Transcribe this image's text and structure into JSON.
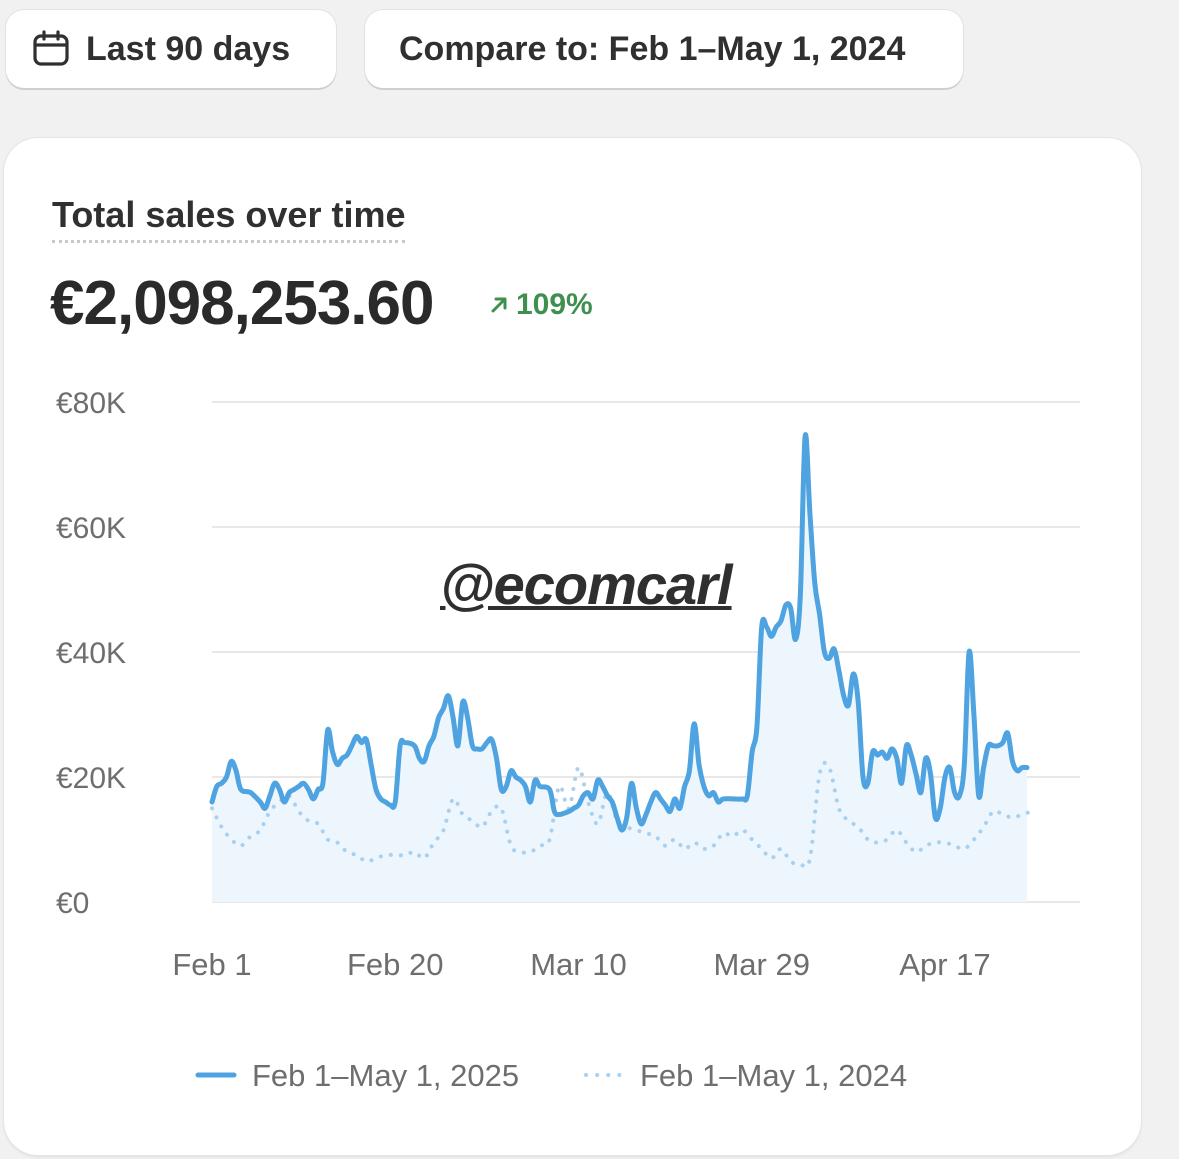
{
  "toolbar": {
    "date_range_label": "Last 90 days",
    "compare_label": "Compare to: Feb 1–May 1, 2024",
    "date_icon": "calendar-icon"
  },
  "card": {
    "title": "Total sales over time",
    "total": "€2,098,253.60",
    "change": "109%",
    "change_direction": "up",
    "change_color": "#3f8f4e"
  },
  "watermark": "@ecomcarl",
  "chart_data": {
    "type": "line",
    "title": "Total sales over time",
    "xlabel": "",
    "ylabel": "",
    "ylim": [
      0,
      80000
    ],
    "y_ticks": [
      0,
      20000,
      40000,
      60000,
      80000
    ],
    "y_tick_labels": [
      "€0",
      "€20K",
      "€40K",
      "€60K",
      "€80K"
    ],
    "x_tick_days": [
      0,
      19,
      38,
      57,
      76
    ],
    "x_tick_labels": [
      "Feb 1",
      "Feb 20",
      "Mar 10",
      "Mar 29",
      "Apr 17"
    ],
    "x_range_days": [
      0,
      90
    ],
    "grid": true,
    "legend_position": "bottom",
    "series": [
      {
        "name": "Feb 1–May 1, 2025",
        "style": "solid",
        "color": "#4ea3e0",
        "points": [
          [
            0,
            16000
          ],
          [
            0.5,
            18500
          ],
          [
            1,
            19000
          ],
          [
            1.5,
            20000
          ],
          [
            2,
            22500
          ],
          [
            2.5,
            21000
          ],
          [
            3,
            18000
          ],
          [
            4,
            17500
          ],
          [
            5,
            16000
          ],
          [
            5.5,
            15000
          ],
          [
            6,
            17000
          ],
          [
            6.5,
            19000
          ],
          [
            7,
            18000
          ],
          [
            7.5,
            16000
          ],
          [
            8,
            17500
          ],
          [
            8.5,
            18000
          ],
          [
            9,
            18500
          ],
          [
            9.5,
            19000
          ],
          [
            10,
            18000
          ],
          [
            10.5,
            16500
          ],
          [
            11,
            18000
          ],
          [
            11.5,
            19000
          ],
          [
            12,
            27500
          ],
          [
            12.5,
            24000
          ],
          [
            13,
            22000
          ],
          [
            13.5,
            23000
          ],
          [
            14,
            23500
          ],
          [
            14.5,
            25000
          ],
          [
            15,
            26500
          ],
          [
            15.5,
            25500
          ],
          [
            16,
            26000
          ],
          [
            16.5,
            22000
          ],
          [
            17,
            18000
          ],
          [
            17.5,
            16500
          ],
          [
            18,
            16000
          ],
          [
            18.5,
            15500
          ],
          [
            19,
            16000
          ],
          [
            19.5,
            25000
          ],
          [
            20,
            25500
          ],
          [
            21,
            25000
          ],
          [
            21.5,
            23000
          ],
          [
            22,
            22500
          ],
          [
            22.5,
            25000
          ],
          [
            23,
            26500
          ],
          [
            23.5,
            29500
          ],
          [
            24,
            31000
          ],
          [
            24.5,
            33000
          ],
          [
            25,
            29500
          ],
          [
            25.5,
            25000
          ],
          [
            26,
            32000
          ],
          [
            26.5,
            29500
          ],
          [
            27,
            25000
          ],
          [
            27.5,
            24500
          ],
          [
            28,
            24500
          ],
          [
            28.5,
            25500
          ],
          [
            29,
            26000
          ],
          [
            29.5,
            23000
          ],
          [
            30,
            18000
          ],
          [
            30.5,
            18500
          ],
          [
            31,
            21000
          ],
          [
            31.5,
            20000
          ],
          [
            32,
            19500
          ],
          [
            32.5,
            18500
          ],
          [
            33,
            16000
          ],
          [
            33.5,
            19500
          ],
          [
            34,
            18500
          ],
          [
            35,
            18000
          ],
          [
            35.5,
            14500
          ],
          [
            36,
            14000
          ],
          [
            37,
            14500
          ],
          [
            37.5,
            15000
          ],
          [
            38,
            15500
          ],
          [
            38.5,
            17000
          ],
          [
            39,
            17500
          ],
          [
            39.5,
            16500
          ],
          [
            40,
            19500
          ],
          [
            40.5,
            18500
          ],
          [
            41,
            17000
          ],
          [
            41.5,
            16000
          ],
          [
            42,
            13500
          ],
          [
            42.5,
            11500
          ],
          [
            43,
            13500
          ],
          [
            43.5,
            19000
          ],
          [
            44,
            15000
          ],
          [
            44.5,
            12500
          ],
          [
            45,
            14000
          ],
          [
            45.5,
            16000
          ],
          [
            46,
            17500
          ],
          [
            46.5,
            16500
          ],
          [
            47,
            15500
          ],
          [
            47.5,
            14500
          ],
          [
            48,
            16500
          ],
          [
            48.5,
            15000
          ],
          [
            49,
            18500
          ],
          [
            49.5,
            21000
          ],
          [
            50,
            28500
          ],
          [
            50.5,
            22000
          ],
          [
            51,
            18500
          ],
          [
            51.5,
            17000
          ],
          [
            52,
            17500
          ],
          [
            52.5,
            16000
          ],
          [
            53,
            16500
          ],
          [
            54,
            16500
          ],
          [
            55,
            16500
          ],
          [
            55.5,
            17000
          ],
          [
            56,
            24000
          ],
          [
            56.5,
            28000
          ],
          [
            57,
            44000
          ],
          [
            57.5,
            44000
          ],
          [
            58,
            42500
          ],
          [
            58.5,
            44000
          ],
          [
            59,
            45000
          ],
          [
            59.5,
            47500
          ],
          [
            60,
            47000
          ],
          [
            60.5,
            42000
          ],
          [
            61,
            49000
          ],
          [
            61.5,
            74500
          ],
          [
            62,
            62000
          ],
          [
            62.5,
            51000
          ],
          [
            63,
            46000
          ],
          [
            63.5,
            40000
          ],
          [
            64,
            39000
          ],
          [
            64.5,
            40500
          ],
          [
            65,
            37000
          ],
          [
            65.5,
            33000
          ],
          [
            66,
            31500
          ],
          [
            66.5,
            36500
          ],
          [
            67,
            32000
          ],
          [
            67.5,
            20000
          ],
          [
            68,
            19000
          ],
          [
            68.5,
            24000
          ],
          [
            69,
            23500
          ],
          [
            69.5,
            24000
          ],
          [
            70,
            23000
          ],
          [
            70.5,
            24500
          ],
          [
            71,
            23000
          ],
          [
            71.5,
            19000
          ],
          [
            72,
            25000
          ],
          [
            72.5,
            23500
          ],
          [
            73,
            20500
          ],
          [
            73.5,
            17500
          ],
          [
            74,
            23000
          ],
          [
            74.5,
            20500
          ],
          [
            75,
            13500
          ],
          [
            75.5,
            15000
          ],
          [
            76,
            20000
          ],
          [
            76.5,
            21500
          ],
          [
            77,
            17500
          ],
          [
            77.5,
            17000
          ],
          [
            78,
            22000
          ],
          [
            78.5,
            40000
          ],
          [
            79,
            30000
          ],
          [
            79.5,
            17000
          ],
          [
            80,
            21500
          ],
          [
            80.5,
            25000
          ],
          [
            81,
            25000
          ],
          [
            81.5,
            25000
          ],
          [
            82,
            25500
          ],
          [
            82.5,
            27000
          ],
          [
            83,
            22500
          ],
          [
            83.5,
            21000
          ],
          [
            84,
            21500
          ],
          [
            84.5,
            21500
          ]
        ]
      },
      {
        "name": "Feb 1–May 1, 2024",
        "style": "dotted",
        "color": "#a9d1ef",
        "points": [
          [
            0,
            15000
          ],
          [
            1,
            12000
          ],
          [
            2,
            10000
          ],
          [
            3,
            9000
          ],
          [
            4,
            10500
          ],
          [
            5,
            11500
          ],
          [
            6,
            14500
          ],
          [
            7,
            16000
          ],
          [
            8,
            17000
          ],
          [
            9,
            14500
          ],
          [
            10,
            13000
          ],
          [
            11,
            12500
          ],
          [
            12,
            10000
          ],
          [
            13,
            9500
          ],
          [
            14,
            8000
          ],
          [
            15,
            7500
          ],
          [
            16,
            6500
          ],
          [
            17,
            7000
          ],
          [
            18,
            7500
          ],
          [
            19,
            7500
          ],
          [
            20,
            7500
          ],
          [
            21,
            8000
          ],
          [
            22,
            7000
          ],
          [
            23,
            9500
          ],
          [
            24,
            11500
          ],
          [
            25,
            16500
          ],
          [
            26,
            14000
          ],
          [
            27,
            13000
          ],
          [
            28,
            12000
          ],
          [
            29,
            14500
          ],
          [
            30,
            15000
          ],
          [
            31,
            9000
          ],
          [
            32,
            8000
          ],
          [
            33,
            8000
          ],
          [
            34,
            9000
          ],
          [
            35,
            10000
          ],
          [
            36,
            18500
          ],
          [
            37,
            15000
          ],
          [
            38,
            21500
          ],
          [
            39,
            16000
          ],
          [
            40,
            12500
          ],
          [
            41,
            17500
          ],
          [
            42,
            13000
          ],
          [
            43,
            12000
          ],
          [
            44,
            11500
          ],
          [
            45,
            11000
          ],
          [
            46,
            10500
          ],
          [
            47,
            9000
          ],
          [
            48,
            10000
          ],
          [
            49,
            8500
          ],
          [
            50,
            9500
          ],
          [
            51,
            8500
          ],
          [
            52,
            9000
          ],
          [
            53,
            11000
          ],
          [
            54,
            10500
          ],
          [
            55,
            11500
          ],
          [
            56,
            10000
          ],
          [
            57,
            8500
          ],
          [
            58,
            7000
          ],
          [
            59,
            8500
          ],
          [
            60,
            6500
          ],
          [
            61,
            6000
          ],
          [
            62,
            7000
          ],
          [
            63,
            20500
          ],
          [
            64,
            21500
          ],
          [
            65,
            15000
          ],
          [
            66,
            13000
          ],
          [
            67,
            12000
          ],
          [
            68,
            10000
          ],
          [
            69,
            9500
          ],
          [
            70,
            10000
          ],
          [
            71,
            11500
          ],
          [
            72,
            9500
          ],
          [
            73,
            8000
          ],
          [
            74,
            9000
          ],
          [
            75,
            9500
          ],
          [
            76,
            9500
          ],
          [
            77,
            9000
          ],
          [
            78,
            8500
          ],
          [
            79,
            10000
          ],
          [
            80,
            12000
          ],
          [
            81,
            14500
          ],
          [
            82,
            14000
          ],
          [
            83,
            13500
          ],
          [
            84,
            14000
          ],
          [
            85,
            14500
          ]
        ]
      }
    ]
  }
}
